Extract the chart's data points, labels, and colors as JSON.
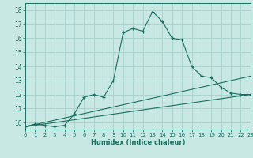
{
  "title": "",
  "xlabel": "Humidex (Indice chaleur)",
  "ylabel": "",
  "bg_color": "#c8e8e4",
  "grid_color": "#a8d0cc",
  "line_color": "#1a7060",
  "x_min": 0,
  "x_max": 23,
  "y_min": 9.5,
  "y_max": 18.5,
  "yticks": [
    10,
    11,
    12,
    13,
    14,
    15,
    16,
    17,
    18
  ],
  "xticks": [
    0,
    1,
    2,
    3,
    4,
    5,
    6,
    7,
    8,
    9,
    10,
    11,
    12,
    13,
    14,
    15,
    16,
    17,
    18,
    19,
    20,
    21,
    22,
    23
  ],
  "curve1_x": [
    0,
    1,
    2,
    3,
    4,
    5,
    6,
    7,
    8,
    9,
    10,
    11,
    12,
    13,
    14,
    15,
    16,
    17,
    18,
    19,
    20,
    21,
    22,
    23
  ],
  "curve1_y": [
    9.7,
    9.9,
    9.8,
    9.7,
    9.8,
    10.6,
    11.8,
    12.0,
    11.8,
    13.0,
    16.4,
    16.7,
    16.5,
    17.9,
    17.2,
    16.0,
    15.9,
    14.0,
    13.3,
    13.2,
    12.5,
    12.1,
    12.0,
    12.0
  ],
  "line1_x": [
    0,
    23
  ],
  "line1_y": [
    9.7,
    12.0
  ],
  "line2_x": [
    0,
    23
  ],
  "line2_y": [
    9.7,
    13.3
  ]
}
